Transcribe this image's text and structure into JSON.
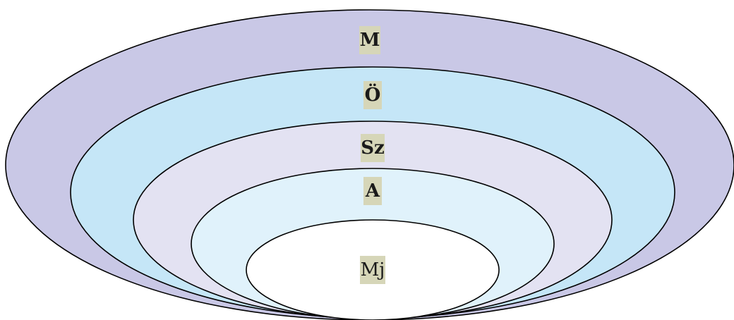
{
  "diagram": {
    "rings": [
      {
        "label": "M",
        "fill": "#c9c8e6",
        "bold": true
      },
      {
        "label": "Ö",
        "fill": "#c5e6f7",
        "bold": true
      },
      {
        "label": "Sz",
        "fill": "#e3e2f2",
        "bold": true
      },
      {
        "label": "A",
        "fill": "#e0f2fb",
        "bold": true
      },
      {
        "label": "Mj",
        "fill": "#ffffff",
        "bold": false
      }
    ],
    "label_background": "#d6d6b8",
    "stroke_color": "#000000"
  }
}
